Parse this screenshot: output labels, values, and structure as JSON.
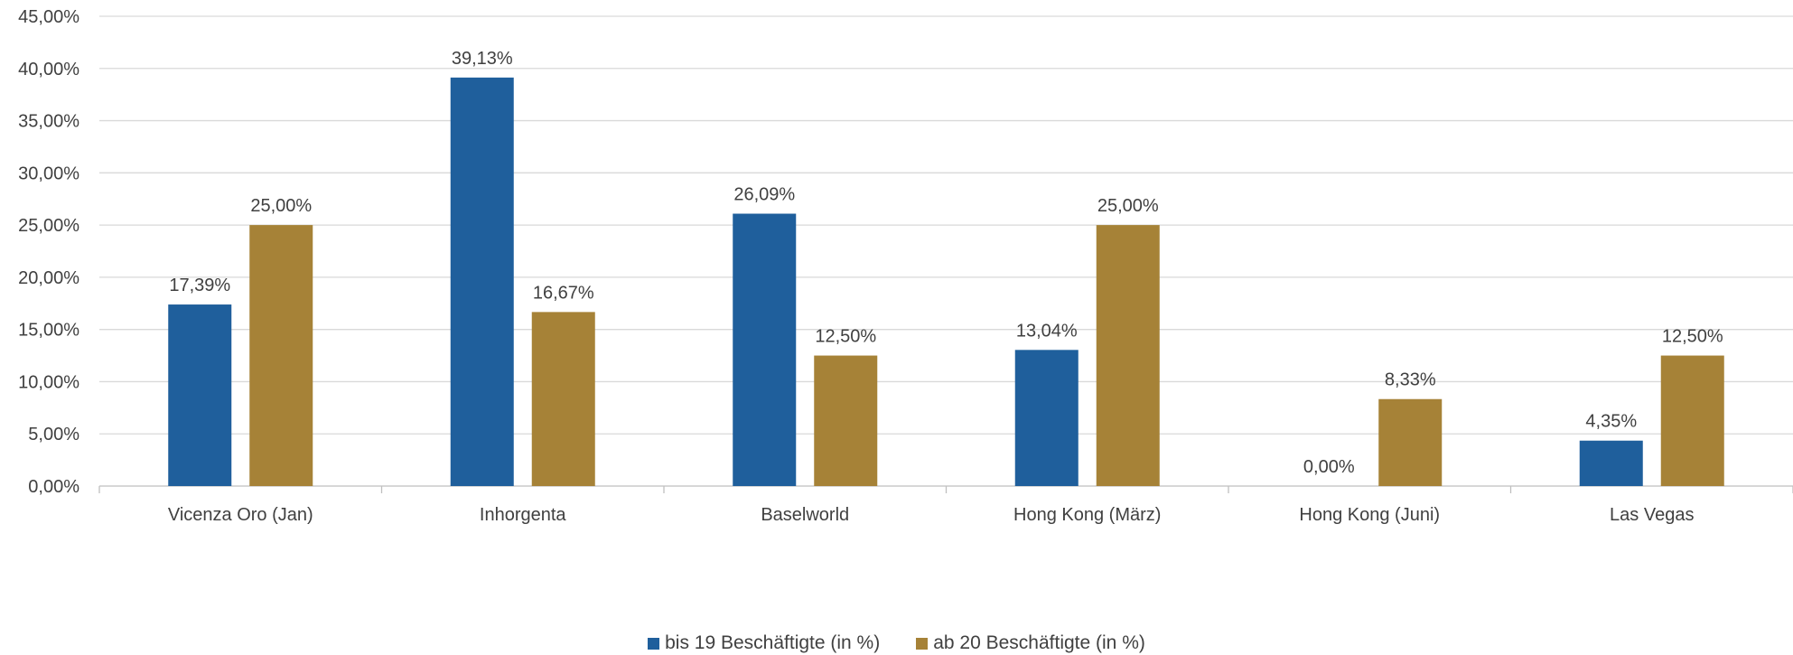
{
  "chart_data": {
    "type": "bar",
    "title": "",
    "xlabel": "",
    "ylabel": "",
    "categories": [
      "Vicenza Oro (Jan)",
      "Inhorgenta",
      "Baselworld",
      "Hong Kong (März)",
      "Hong Kong (Juni)",
      "Las Vegas"
    ],
    "series": [
      {
        "name": "bis 19 Beschäftigte (in %)",
        "color": "#1F5F9C",
        "values": [
          17.39,
          39.13,
          26.09,
          13.04,
          0.0,
          4.35
        ],
        "labels": [
          "17,39%",
          "39,13%",
          "26,09%",
          "13,04%",
          "0,00%",
          "4,35%"
        ]
      },
      {
        "name": "ab 20 Beschäftigte (in %)",
        "color": "#A68237",
        "values": [
          25.0,
          16.67,
          12.5,
          25.0,
          8.33,
          12.5
        ],
        "labels": [
          "25,00%",
          "16,67%",
          "12,50%",
          "25,00%",
          "8,33%",
          "12,50%"
        ]
      }
    ],
    "ylim": [
      0,
      45
    ],
    "yticks": [
      0,
      5,
      10,
      15,
      20,
      25,
      30,
      35,
      40,
      45
    ],
    "ytick_labels": [
      "0,00%",
      "5,00%",
      "10,00%",
      "15,00%",
      "20,00%",
      "25,00%",
      "30,00%",
      "35,00%",
      "40,00%",
      "45,00%"
    ],
    "grid": true,
    "legend_position": "bottom"
  }
}
